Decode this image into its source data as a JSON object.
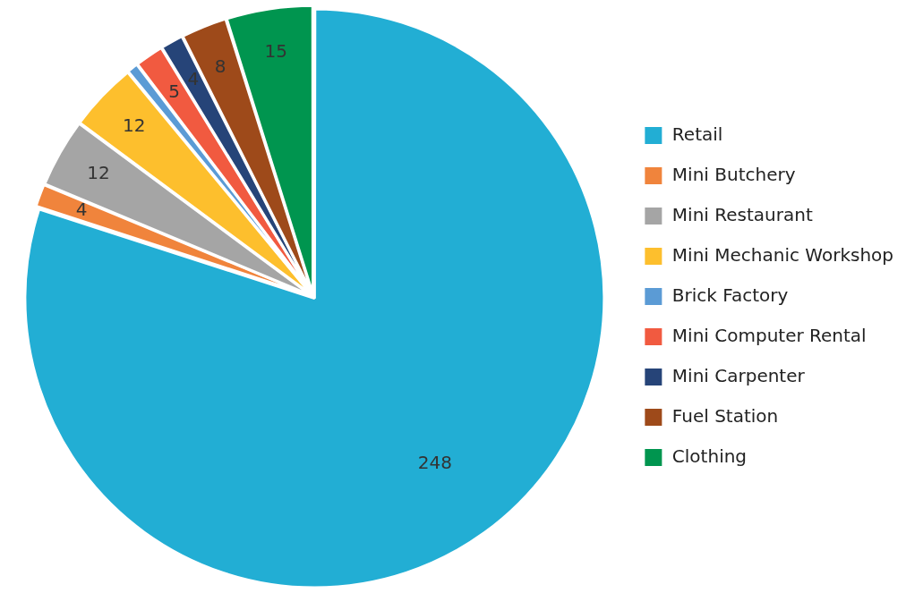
{
  "chart_data": {
    "type": "pie",
    "categories": [
      "Retail",
      "Mini Butchery",
      "Mini Restaurant",
      "Mini Mechanic Workshop",
      "Brick Factory",
      "Mini Computer Rental",
      "Mini Carpenter",
      "Fuel Station",
      "Clothing"
    ],
    "values": [
      248,
      4,
      12,
      12,
      2,
      5,
      4,
      8,
      15
    ],
    "value_labels": [
      "248",
      "4",
      "12",
      "12",
      null,
      "5",
      "4",
      "8",
      "15"
    ],
    "colors": [
      "#22aed4",
      "#f0843c",
      "#a5a5a5",
      "#fdbf2d",
      "#5b9bd5",
      "#f15a40",
      "#264478",
      "#9e4a1a",
      "#00954f"
    ],
    "legend": "right"
  }
}
